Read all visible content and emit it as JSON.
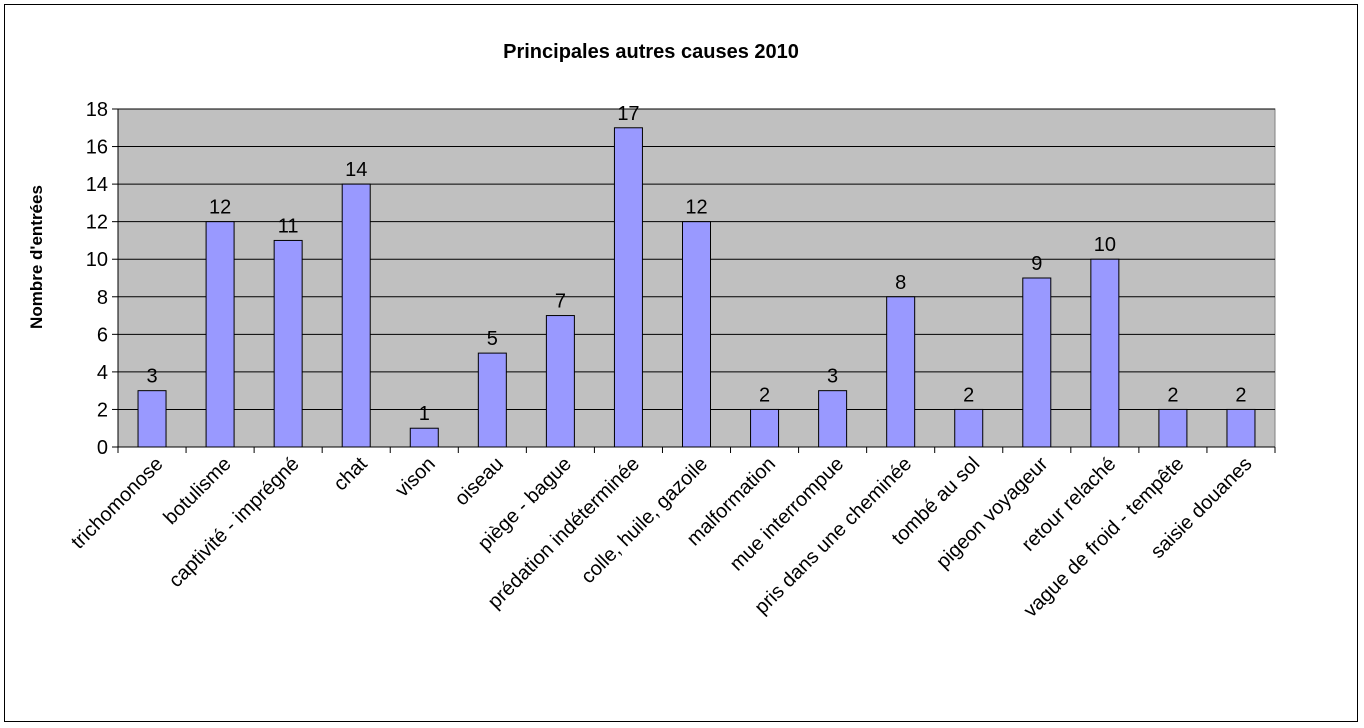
{
  "chart_data": {
    "type": "bar",
    "title": "Principales autres causes 2010",
    "xlabel": "",
    "ylabel": "Nombre d'entrées",
    "ylim": [
      0,
      18
    ],
    "ytick_step": 2,
    "grid": true,
    "legend": "none",
    "categories": [
      "trichomonose",
      "botulisme",
      "captivité - imprégné",
      "chat",
      "vison",
      "oiseau",
      "piège - bague",
      "prédation indéterminée",
      "colle, huile, gazoile",
      "malformation",
      "mue interrompue",
      "pris dans une cheminée",
      "tombé au sol",
      "pigeon voyageur",
      "retour relaché",
      "vague de froid - tempête",
      "saisie douanes"
    ],
    "values": [
      3,
      12,
      11,
      14,
      1,
      5,
      7,
      17,
      12,
      2,
      3,
      8,
      2,
      9,
      10,
      2,
      2
    ],
    "colors": {
      "bar_fill": "#9999ff",
      "bar_stroke": "#000000",
      "plot_background": "#c0c0c0",
      "gridline": "#000000"
    }
  }
}
